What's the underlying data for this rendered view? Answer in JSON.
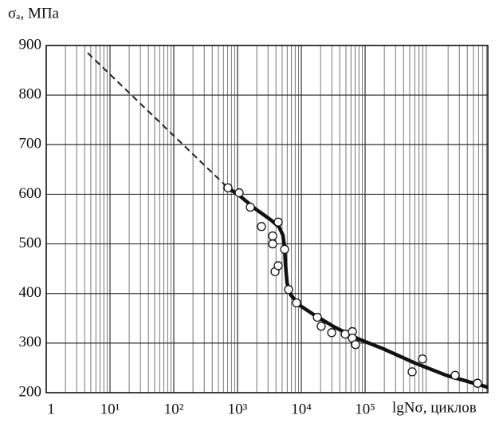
{
  "chart_data": {
    "type": "scatter",
    "y_label": "σₐ, МПа",
    "x_label": "lgNσ, циклов",
    "log_x": true,
    "grid": true,
    "xlim": [
      1,
      8400000
    ],
    "ylim": [
      200,
      900
    ],
    "xticks": [
      {
        "value": 1,
        "label": "1"
      },
      {
        "value": 10,
        "label": "10¹"
      },
      {
        "value": 100,
        "label": "10²"
      },
      {
        "value": 1000,
        "label": "10³"
      },
      {
        "value": 10000,
        "label": "10⁴"
      },
      {
        "value": 100000,
        "label": "10⁵"
      }
    ],
    "yticks": [
      200,
      300,
      400,
      500,
      600,
      700,
      800,
      900
    ],
    "series": [
      {
        "style": "dashed",
        "color": "#222",
        "x": [
          4.47,
          708
        ],
        "values": [
          885,
          613
        ]
      },
      {
        "style": "line",
        "color": "#111",
        "x": [
          708,
          1060,
          1880,
          3350,
          4470,
          5130,
          5460,
          5620,
          5960,
          6860,
          9160,
          16300,
          33500,
          79400,
          188000,
          596000,
          1880000,
          8400000
        ],
        "values": [
          613,
          598,
          571,
          548,
          534,
          518,
          494,
          461,
          421,
          397,
          377,
          356,
          332,
          308,
          289,
          260,
          235,
          211
        ]
      },
      {
        "style": "points",
        "color": "#111",
        "x": [
          708,
          1060,
          1585,
          2370,
          3550,
          3550,
          4340,
          3870,
          4340,
          5460,
          6310,
          8410,
          17800,
          20500,
          29900,
          48700,
          63100,
          63100,
          70800,
          546000,
          794000,
          2580000,
          5790000
        ],
        "values": [
          613,
          603,
          574,
          535,
          516,
          500,
          544,
          444,
          456,
          489,
          408,
          381,
          352,
          334,
          321,
          318,
          323,
          310,
          297,
          242,
          268,
          235,
          219
        ]
      }
    ]
  }
}
